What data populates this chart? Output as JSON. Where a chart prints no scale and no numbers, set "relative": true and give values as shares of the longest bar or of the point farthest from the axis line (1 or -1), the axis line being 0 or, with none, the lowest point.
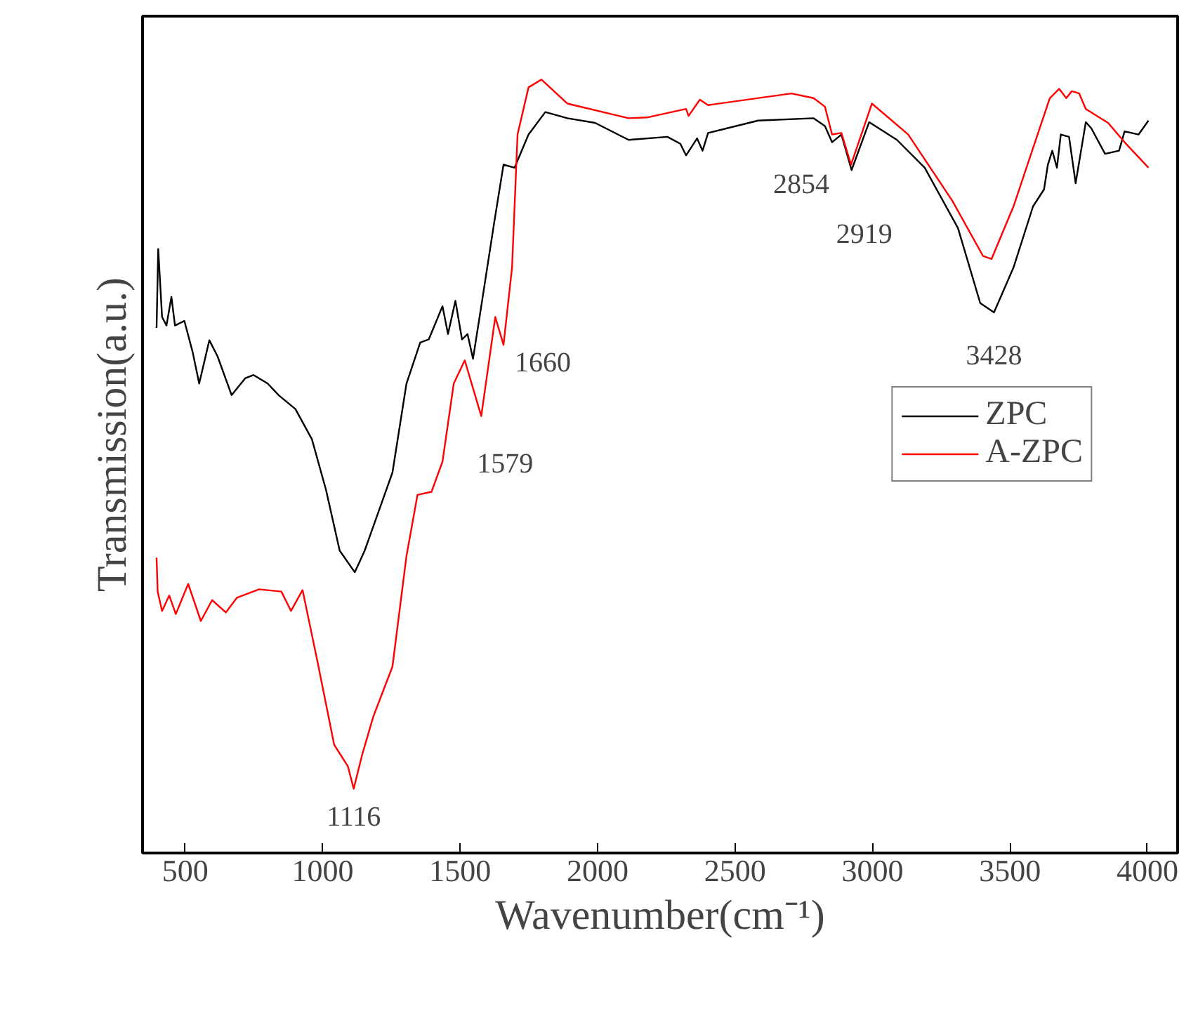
{
  "chart_data": {
    "type": "line",
    "relative": true,
    "xlabel": "Wavenumber(cm⁻¹)",
    "ylabel": "Transmission(a.u.)",
    "xlim": [
      345,
      4110
    ],
    "xticks": [
      500,
      1000,
      1500,
      2000,
      2500,
      3000,
      3500,
      4000
    ],
    "tick_labels": "x",
    "grid": false,
    "legend": "right",
    "line_style": "solid",
    "marker": "none",
    "series": [
      {
        "name": "ZPC",
        "color": "#000000",
        "x": [
          396,
          402,
          416,
          432,
          450,
          463,
          497,
          527,
          551,
          588,
          618,
          669,
          719,
          749,
          800,
          840,
          901,
          961,
          1012,
          1062,
          1117,
          1153,
          1204,
          1254,
          1305,
          1355,
          1386,
          1436,
          1456,
          1483,
          1507,
          1527,
          1547,
          1577,
          1624,
          1658,
          1698,
          1749,
          1810,
          1890,
          1991,
          2113,
          2254,
          2301,
          2322,
          2362,
          2382,
          2402,
          2584,
          2786,
          2827,
          2853,
          2887,
          2924,
          2988,
          3089,
          3190,
          3311,
          3392,
          3442,
          3513,
          3584,
          3624,
          3638,
          3654,
          3671,
          3685,
          3715,
          3739,
          3776,
          3796,
          3846,
          3897,
          3917,
          3968,
          4004
        ],
        "values": [
          0.679,
          0.781,
          0.693,
          0.682,
          0.719,
          0.682,
          0.688,
          0.648,
          0.607,
          0.663,
          0.642,
          0.592,
          0.614,
          0.618,
          0.607,
          0.592,
          0.574,
          0.535,
          0.47,
          0.391,
          0.363,
          0.391,
          0.442,
          0.492,
          0.607,
          0.66,
          0.664,
          0.707,
          0.671,
          0.714,
          0.664,
          0.671,
          0.639,
          0.707,
          0.815,
          0.89,
          0.886,
          0.929,
          0.958,
          0.95,
          0.944,
          0.922,
          0.926,
          0.917,
          0.902,
          0.924,
          0.908,
          0.931,
          0.947,
          0.95,
          0.94,
          0.919,
          0.929,
          0.883,
          0.945,
          0.922,
          0.886,
          0.808,
          0.711,
          0.699,
          0.757,
          0.836,
          0.858,
          0.89,
          0.908,
          0.886,
          0.929,
          0.926,
          0.866,
          0.945,
          0.937,
          0.904,
          0.908,
          0.933,
          0.929,
          0.947
        ]
      },
      {
        "name": "A-ZPC",
        "color": "#ff0000",
        "x": [
          396,
          400,
          416,
          442,
          466,
          511,
          557,
          598,
          648,
          688,
          769,
          850,
          885,
          927,
          981,
          1042,
          1092,
          1113,
          1143,
          1184,
          1254,
          1305,
          1345,
          1396,
          1436,
          1477,
          1517,
          1577,
          1628,
          1658,
          1689,
          1709,
          1749,
          1796,
          1890,
          2113,
          2180,
          2322,
          2331,
          2372,
          2402,
          2705,
          2786,
          2827,
          2853,
          2887,
          2922,
          2998,
          3130,
          3291,
          3402,
          3433,
          3513,
          3594,
          3645,
          3679,
          3705,
          3725,
          3752,
          3776,
          3857,
          3917,
          4004
        ],
        "values": [
          0.382,
          0.338,
          0.313,
          0.333,
          0.309,
          0.348,
          0.3,
          0.327,
          0.311,
          0.33,
          0.341,
          0.338,
          0.313,
          0.34,
          0.248,
          0.14,
          0.112,
          0.083,
          0.126,
          0.176,
          0.241,
          0.384,
          0.463,
          0.467,
          0.506,
          0.607,
          0.637,
          0.565,
          0.693,
          0.657,
          0.757,
          0.929,
          0.99,
          1.0,
          0.969,
          0.95,
          0.951,
          0.962,
          0.953,
          0.974,
          0.967,
          0.982,
          0.976,
          0.965,
          0.929,
          0.931,
          0.89,
          0.969,
          0.929,
          0.843,
          0.772,
          0.768,
          0.836,
          0.922,
          0.976,
          0.988,
          0.976,
          0.985,
          0.982,
          0.962,
          0.944,
          0.919,
          0.886
        ]
      }
    ],
    "annotations": [
      {
        "text": "1116",
        "x": 1113,
        "y": 0.083
      },
      {
        "text": "1579",
        "x": 1577,
        "y": 0.565
      },
      {
        "text": "1660",
        "x": 1658,
        "y": 0.657
      },
      {
        "text": "2854",
        "x": 2853,
        "y": 0.919
      },
      {
        "text": "2919",
        "x": 2924,
        "y": 0.883
      },
      {
        "text": "3428",
        "x": 3442,
        "y": 0.699
      }
    ]
  }
}
